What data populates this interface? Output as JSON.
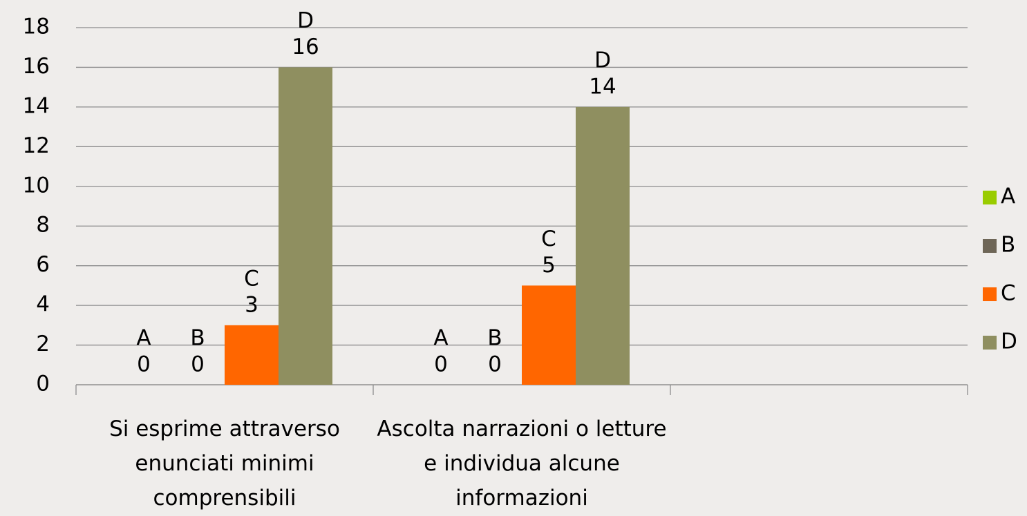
{
  "chart_data": {
    "type": "bar",
    "categories": [
      "Si esprime attraverso enunciati minimi comprensibili",
      "Ascolta narrazioni o letture e individua alcune informazioni",
      null
    ],
    "series": [
      {
        "name": "A",
        "color": "#99cc00",
        "values": [
          0,
          0,
          null
        ]
      },
      {
        "name": "B",
        "color": "#6e6657",
        "values": [
          0,
          0,
          null
        ]
      },
      {
        "name": "C",
        "color": "#ff6600",
        "values": [
          3,
          5,
          null
        ]
      },
      {
        "name": "D",
        "color": "#8f8f60",
        "values": [
          16,
          14,
          null
        ]
      }
    ],
    "ylim": [
      0,
      18
    ],
    "yticks": [
      0,
      2,
      4,
      6,
      8,
      10,
      12,
      14,
      16,
      18
    ],
    "grid": true,
    "legend": "right"
  }
}
